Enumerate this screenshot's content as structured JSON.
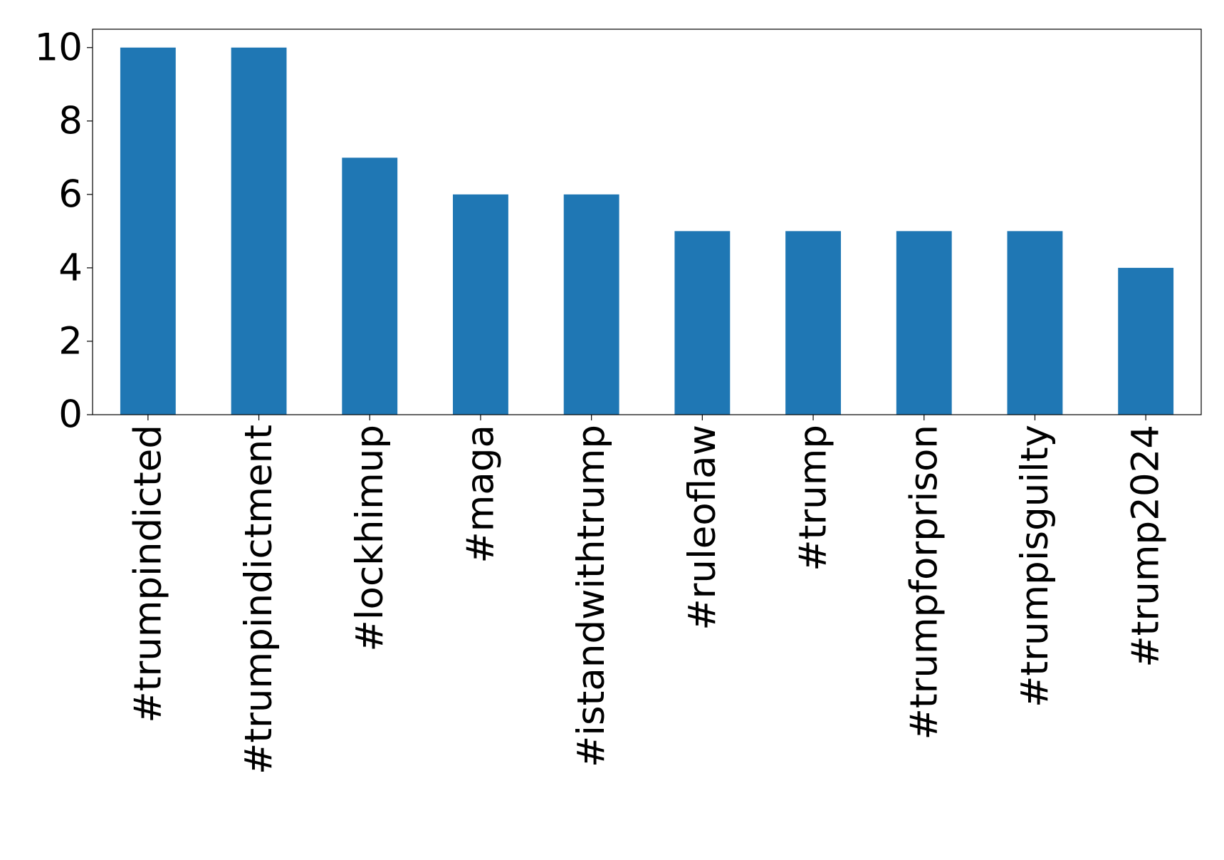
{
  "chart_data": {
    "type": "bar",
    "categories": [
      "#trumpindicted",
      "#trumpindictment",
      "#lockhimup",
      "#maga",
      "#istandwithtrump",
      "#ruleoflaw",
      "#trump",
      "#trumpforprison",
      "#trumpisguilty",
      "#trump2024"
    ],
    "values": [
      10,
      10,
      7,
      6,
      6,
      5,
      5,
      5,
      5,
      4
    ],
    "color": "#1f77b4",
    "ylim": [
      0,
      10.5
    ],
    "yticks": [
      0,
      2,
      4,
      6,
      8,
      10
    ],
    "grid": false
  }
}
